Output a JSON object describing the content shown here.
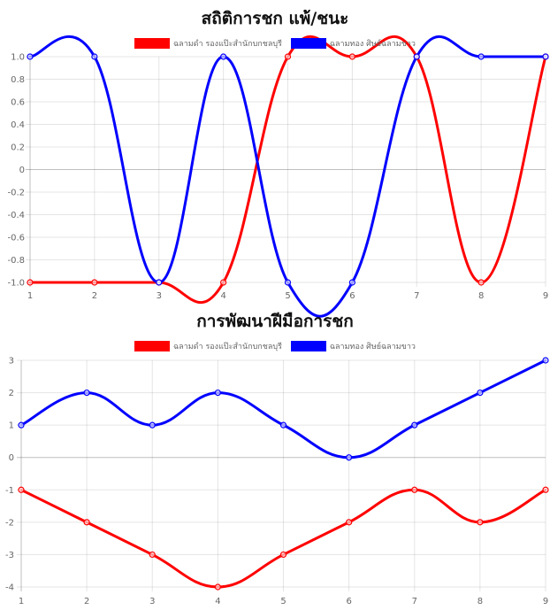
{
  "colors": {
    "red": "#ff0000",
    "blue": "#0000ff"
  },
  "chart_data": [
    {
      "type": "line",
      "title": "สถิติการชก แพ้/ชนะ",
      "x": [
        1,
        2,
        3,
        4,
        5,
        6,
        7,
        8,
        9
      ],
      "x_tick_labels": [
        "1",
        "2",
        "3",
        "4",
        "5",
        "6",
        "7",
        "8",
        "9"
      ],
      "y_tick_labels": [
        "1.0",
        "0.8",
        "0.6",
        "0.4",
        "0.2",
        "0",
        "-0.2",
        "-0.4",
        "-0.6",
        "-0.8",
        "-1.0"
      ],
      "ylim": [
        -1,
        1
      ],
      "y_ticks": [
        1.0,
        0.8,
        0.6,
        0.4,
        0.2,
        0,
        -0.2,
        -0.4,
        -0.6,
        -0.8,
        -1.0
      ],
      "grid": true,
      "legend": "top-center",
      "series": [
        {
          "name": "ฉลามดำ รองแป๊ะสำนักบกชลบุรี",
          "color": "#ff0000",
          "values": [
            -1,
            -1,
            -1,
            -1,
            1,
            1,
            1,
            -1,
            1
          ]
        },
        {
          "name": "ฉลามทอง ศิษย์ฉลามขาว",
          "color": "#0000ff",
          "values": [
            1,
            1,
            -1,
            1,
            -1,
            -1,
            1,
            1,
            1
          ]
        }
      ]
    },
    {
      "type": "line",
      "title": "การพัฒนาฝีมือการชก",
      "x": [
        1,
        2,
        3,
        4,
        5,
        6,
        7,
        8,
        9
      ],
      "x_tick_labels": [
        "1",
        "2",
        "3",
        "4",
        "5",
        "6",
        "7",
        "8",
        "9"
      ],
      "y_tick_labels": [
        "3",
        "2",
        "1",
        "0",
        "-1",
        "-2",
        "-3",
        "-4"
      ],
      "ylim": [
        -4,
        3
      ],
      "y_ticks": [
        3,
        2,
        1,
        0,
        -1,
        -2,
        -3,
        -4
      ],
      "grid": true,
      "legend": "top-center",
      "series": [
        {
          "name": "ฉลามดำ รองแป๊ะสำนักบกชลบุรี",
          "color": "#ff0000",
          "values": [
            -1,
            -2,
            -3,
            -4,
            -3,
            -2,
            -1,
            -2,
            -1
          ]
        },
        {
          "name": "ฉลามทอง ศิษย์ฉลามขาว",
          "color": "#0000ff",
          "values": [
            1,
            2,
            1,
            2,
            1,
            0,
            1,
            2,
            3
          ]
        }
      ]
    }
  ]
}
